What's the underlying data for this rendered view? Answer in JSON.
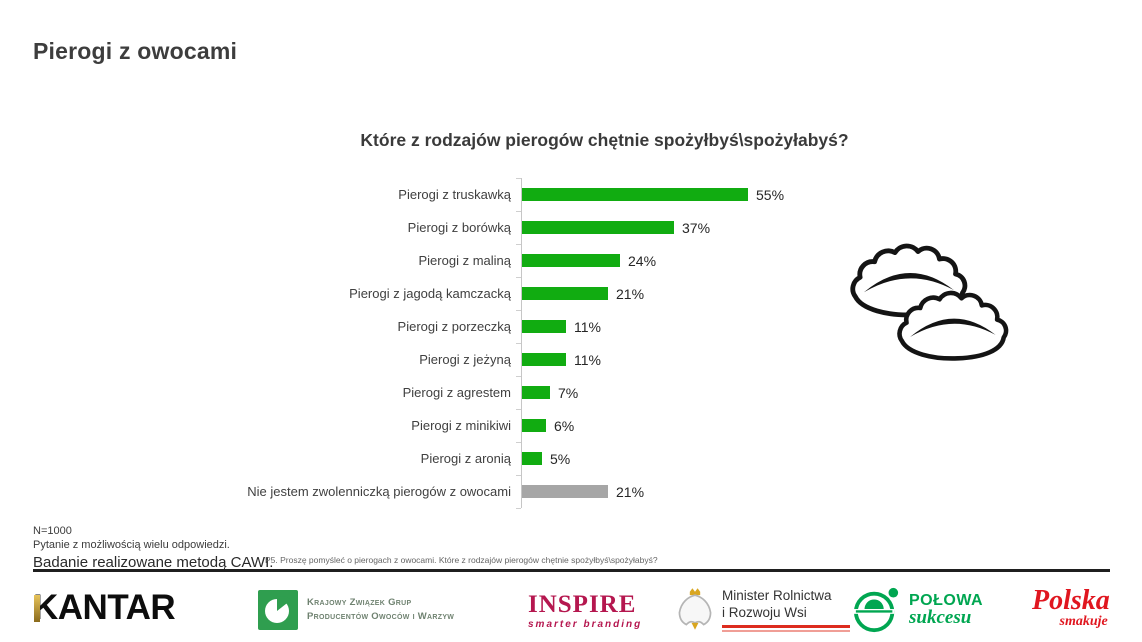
{
  "page": {
    "title": "Pierogi z owocami"
  },
  "chart_data": {
    "type": "bar",
    "orientation": "horizontal",
    "title": "Które z rodzajów pierogów chętnie spożyłbyś\\spożyłabyś?",
    "categories": [
      "Pierogi z truskawką",
      "Pierogi z borówką",
      "Pierogi z maliną",
      "Pierogi z jagodą kamczacką",
      "Pierogi z porzeczką",
      "Pierogi z jeżyną",
      "Pierogi z agrestem",
      "Pierogi z minikiwi",
      "Pierogi z aronią",
      "Nie jestem zwolenniczką pierogów z owocami"
    ],
    "values": [
      55,
      37,
      24,
      21,
      11,
      11,
      7,
      6,
      5,
      21
    ],
    "unit": "%",
    "colors": [
      "#11ac11",
      "#11ac11",
      "#11ac11",
      "#11ac11",
      "#11ac11",
      "#11ac11",
      "#11ac11",
      "#11ac11",
      "#11ac11",
      "#a6a6a6"
    ],
    "xlim": [
      0,
      60
    ],
    "grid": false,
    "legend": "none",
    "value_labels": true
  },
  "notes": {
    "sample": "N=1000",
    "multi": "Pytanie z możliwością wielu odpowiedzi.",
    "method": "Badanie realizowane metodą CAWI.",
    "question": "P5. Proszę pomyśleć o pierogach z owocami. Które z rodzajów pierogów chętnie spożyłbyś\\spożyłabyś?"
  },
  "logos": {
    "kantar": {
      "text": "KANTAR",
      "accent_color": "#c9a227"
    },
    "kzgp": {
      "line1": "Krajowy Związek Grup",
      "line2": "Producentów Owoców i Warzyw",
      "color": "#2f9e4f"
    },
    "inspire": {
      "text": "INSPIRE",
      "tagline": "smarter branding",
      "color": "#b5174f"
    },
    "ministry": {
      "line1": "Minister Rolnictwa",
      "line2": "i Rozwoju Wsi"
    },
    "polowa": {
      "line1": "POŁOWA",
      "line2": "sukcesu",
      "color": "#00a651"
    },
    "polska": {
      "line1": "Polska",
      "line2": "smakuje",
      "color": "#e0161f"
    }
  }
}
